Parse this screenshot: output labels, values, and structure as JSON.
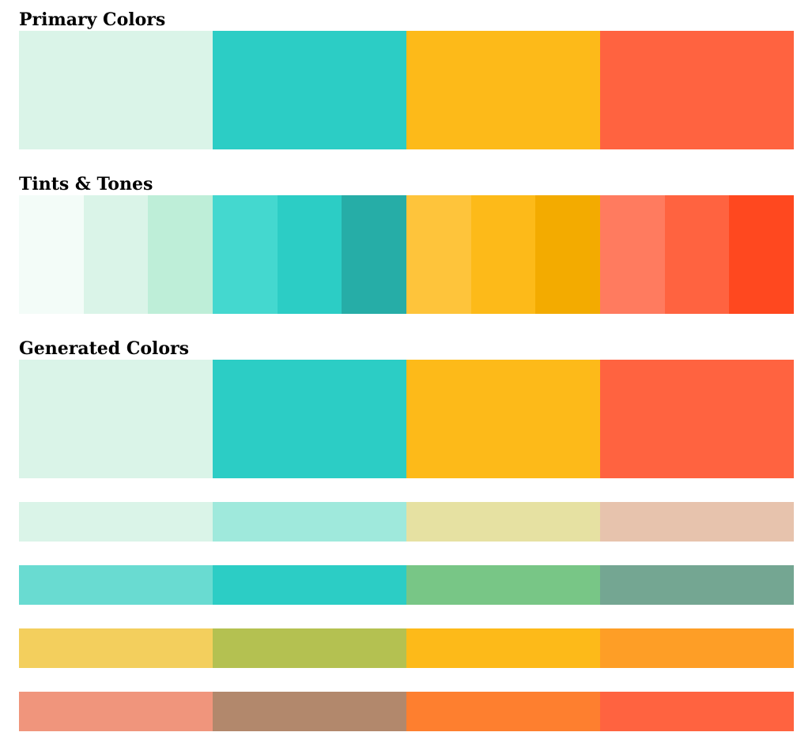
{
  "sections": {
    "primary": {
      "title": "Primary Colors",
      "colors": [
        "#daf4e8",
        "#2ccdc5",
        "#fdba19",
        "#ff6340"
      ]
    },
    "tints": {
      "title": "Tints & Tones",
      "colors": [
        "#f3fcf8",
        "#daf4e8",
        "#beeed8",
        "#44d8cf",
        "#2ccdc5",
        "#26ada7",
        "#fec43b",
        "#fdba19",
        "#f3ab00",
        "#ff7b5f",
        "#ff6340",
        "#ff481f"
      ]
    },
    "generated": {
      "title": "Generated Colors",
      "main": [
        "#daf4e8",
        "#2ccdc5",
        "#fdba19",
        "#ff6340"
      ],
      "rows": [
        [
          "#daf4e8",
          "#9fe9dc",
          "#e6e1a2",
          "#e7c3ad"
        ],
        [
          "#69dbd1",
          "#2ccdc5",
          "#78c686",
          "#74a692"
        ],
        [
          "#f3cf5d",
          "#b4c151",
          "#fdba19",
          "#fe9e26"
        ],
        [
          "#f0957c",
          "#b2886c",
          "#fe7f2f",
          "#ff6340"
        ]
      ]
    }
  }
}
